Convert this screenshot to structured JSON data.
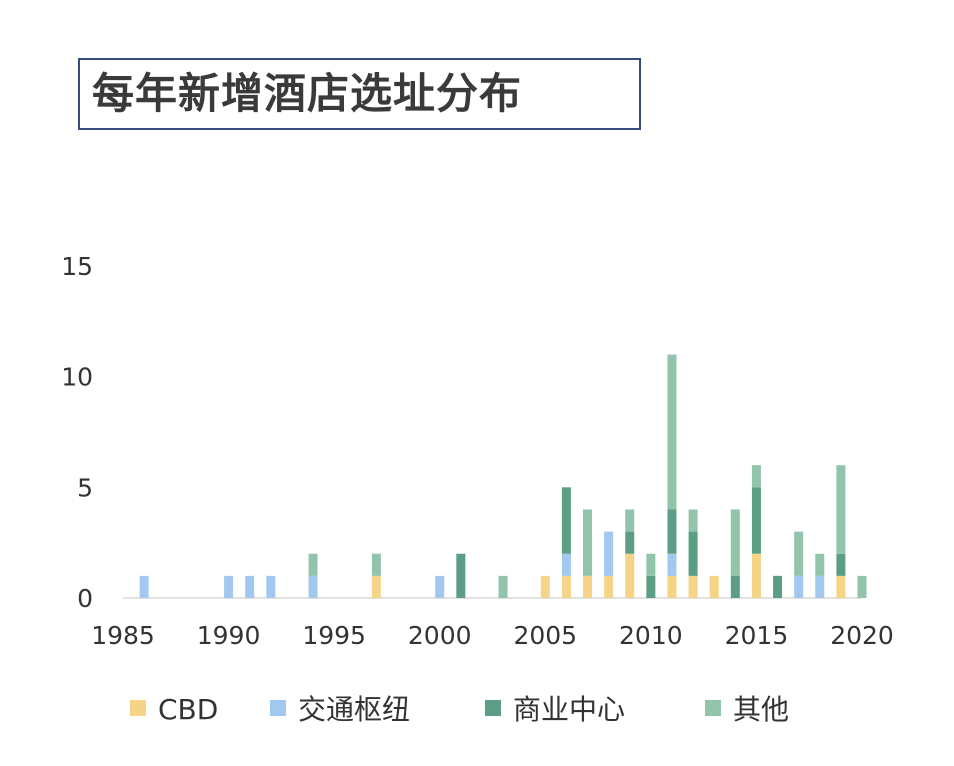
{
  "title": "每年新增酒店选址分布",
  "chart_data": {
    "type": "bar",
    "stacked": true,
    "title": "每年新增酒店选址分布",
    "xlabel": "",
    "ylabel": "",
    "xlim": [
      1985,
      2020
    ],
    "ylim": [
      0,
      15
    ],
    "x_ticks": [
      1985,
      1990,
      1995,
      2000,
      2005,
      2010,
      2015,
      2020
    ],
    "y_ticks": [
      0,
      5,
      10,
      15
    ],
    "legend_position": "bottom",
    "x": [
      1986,
      1990,
      1991,
      1992,
      1994,
      1997,
      2000,
      2001,
      2003,
      2005,
      2006,
      2007,
      2008,
      2009,
      2010,
      2011,
      2012,
      2013,
      2014,
      2015,
      2016,
      2017,
      2018,
      2019,
      2020
    ],
    "series": [
      {
        "name": "CBD",
        "color": "#f5d488",
        "values": [
          0,
          0,
          0,
          0,
          0,
          1,
          0,
          0,
          0,
          1,
          1,
          1,
          1,
          2,
          0,
          1,
          1,
          1,
          0,
          2,
          0,
          0,
          0,
          1,
          0
        ]
      },
      {
        "name": "交通枢纽",
        "color": "#a3c8f0",
        "values": [
          1,
          1,
          1,
          1,
          1,
          0,
          1,
          0,
          0,
          0,
          1,
          0,
          2,
          0,
          0,
          1,
          0,
          0,
          0,
          0,
          0,
          1,
          1,
          0,
          0
        ]
      },
      {
        "name": "商业中心",
        "color": "#5b9e84",
        "values": [
          0,
          0,
          0,
          0,
          0,
          0,
          0,
          2,
          0,
          0,
          3,
          0,
          0,
          1,
          1,
          2,
          2,
          0,
          1,
          3,
          1,
          0,
          0,
          1,
          0
        ]
      },
      {
        "name": "其他",
        "color": "#91c4aa",
        "values": [
          0,
          0,
          0,
          0,
          1,
          1,
          0,
          0,
          1,
          0,
          0,
          3,
          0,
          1,
          1,
          7,
          1,
          0,
          3,
          1,
          0,
          2,
          1,
          4,
          1
        ]
      }
    ]
  }
}
